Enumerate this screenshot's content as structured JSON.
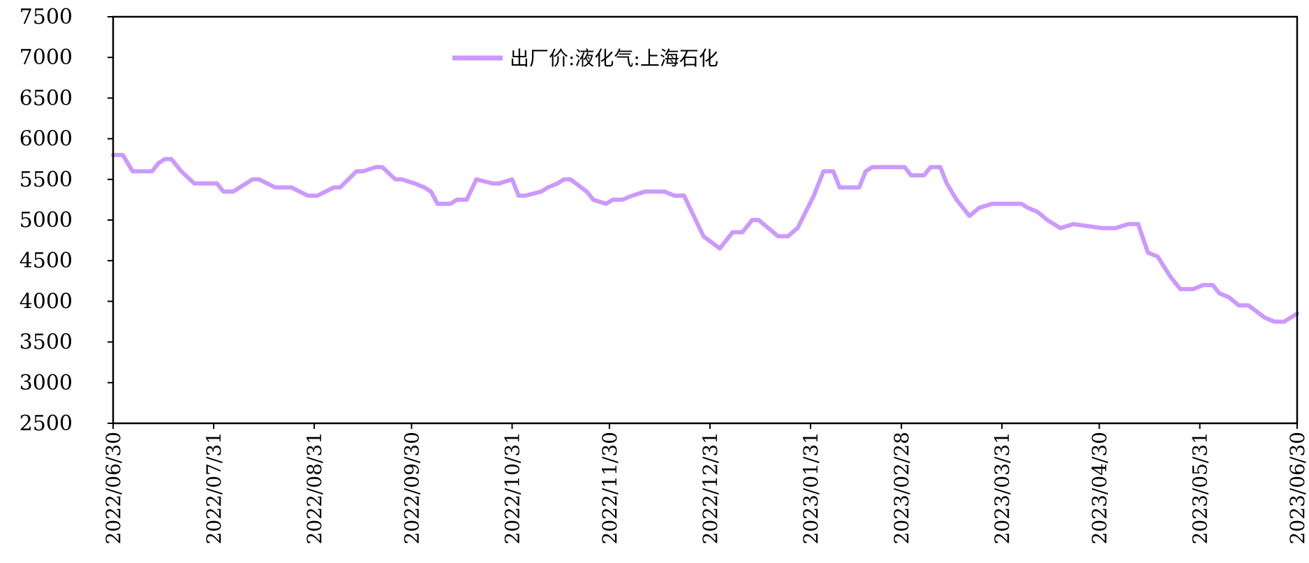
{
  "chart_data": {
    "type": "line",
    "title": "",
    "xlabel": "",
    "ylabel": "",
    "ylim": [
      2500,
      7500
    ],
    "yticks": [
      2500,
      3000,
      3500,
      4000,
      4500,
      5000,
      5500,
      6000,
      6500,
      7000,
      7500
    ],
    "xlim": [
      "2022-06-30",
      "2023-06-30"
    ],
    "xticks": [
      "2022/06/30",
      "2022/07/31",
      "2022/08/31",
      "2022/09/30",
      "2022/10/31",
      "2022/11/30",
      "2022/12/31",
      "2023/01/31",
      "2023/02/28",
      "2023/03/31",
      "2023/04/30",
      "2023/05/31",
      "2023/06/30"
    ],
    "grid": false,
    "legend_position": "top-center",
    "series": [
      {
        "name": "出厂价:液化气:上海石化",
        "color": "#cc99ff",
        "x": [
          "2022-06-30",
          "2022-07-03",
          "2022-07-06",
          "2022-07-10",
          "2022-07-12",
          "2022-07-14",
          "2022-07-16",
          "2022-07-18",
          "2022-07-21",
          "2022-07-25",
          "2022-07-27",
          "2022-08-01",
          "2022-08-03",
          "2022-08-06",
          "2022-08-12",
          "2022-08-14",
          "2022-08-19",
          "2022-08-24",
          "2022-08-29",
          "2022-09-01",
          "2022-09-06",
          "2022-09-08",
          "2022-09-13",
          "2022-09-15",
          "2022-09-19",
          "2022-09-21",
          "2022-09-25",
          "2022-09-27",
          "2022-10-01",
          "2022-10-04",
          "2022-10-06",
          "2022-10-08",
          "2022-10-10",
          "2022-10-12",
          "2022-10-14",
          "2022-10-17",
          "2022-10-20",
          "2022-10-25",
          "2022-10-27",
          "2022-10-31",
          "2022-11-02",
          "2022-11-04",
          "2022-11-09",
          "2022-11-11",
          "2022-11-14",
          "2022-11-16",
          "2022-11-18",
          "2022-11-23",
          "2022-11-25",
          "2022-11-29",
          "2022-12-01",
          "2022-12-04",
          "2022-12-07",
          "2022-12-11",
          "2022-12-17",
          "2022-12-20",
          "2022-12-23",
          "2022-12-26",
          "2022-12-29",
          "2023-01-03",
          "2023-01-07",
          "2023-01-10",
          "2023-01-13",
          "2023-01-15",
          "2023-01-18",
          "2023-01-21",
          "2023-01-24",
          "2023-01-27",
          "2023-02-01",
          "2023-02-04",
          "2023-02-07",
          "2023-02-09",
          "2023-02-15",
          "2023-02-17",
          "2023-02-19",
          "2023-03-01",
          "2023-03-03",
          "2023-03-07",
          "2023-03-09",
          "2023-03-12",
          "2023-03-14",
          "2023-03-17",
          "2023-03-21",
          "2023-03-24",
          "2023-03-28",
          "2023-04-06",
          "2023-04-08",
          "2023-04-11",
          "2023-04-14",
          "2023-04-18",
          "2023-04-22",
          "2023-05-01",
          "2023-05-05",
          "2023-05-09",
          "2023-05-12",
          "2023-05-15",
          "2023-05-18",
          "2023-05-22",
          "2023-05-25",
          "2023-05-29",
          "2023-06-01",
          "2023-06-04",
          "2023-06-06",
          "2023-06-09",
          "2023-06-12",
          "2023-06-15",
          "2023-06-20",
          "2023-06-23",
          "2023-06-26",
          "2023-06-30"
        ],
        "y": [
          5800,
          5800,
          5600,
          5600,
          5600,
          5700,
          5750,
          5750,
          5600,
          5450,
          5450,
          5450,
          5350,
          5350,
          5500,
          5500,
          5400,
          5400,
          5300,
          5300,
          5400,
          5400,
          5600,
          5600,
          5650,
          5650,
          5500,
          5500,
          5450,
          5400,
          5350,
          5200,
          5200,
          5200,
          5250,
          5250,
          5500,
          5450,
          5450,
          5500,
          5300,
          5300,
          5350,
          5400,
          5450,
          5500,
          5500,
          5350,
          5250,
          5200,
          5250,
          5250,
          5300,
          5350,
          5350,
          5300,
          5300,
          5050,
          4800,
          4650,
          4850,
          4850,
          5000,
          5000,
          4900,
          4800,
          4800,
          4900,
          5300,
          5600,
          5600,
          5400,
          5400,
          5600,
          5650,
          5650,
          5550,
          5550,
          5650,
          5650,
          5450,
          5250,
          5050,
          5150,
          5200,
          5200,
          5150,
          5100,
          5000,
          4900,
          4950,
          4900,
          4900,
          4950,
          4950,
          4600,
          4550,
          4300,
          4150,
          4150,
          4200,
          4200,
          4100,
          4050,
          3950,
          3950,
          3800,
          3750,
          3750,
          3850
        ]
      }
    ]
  }
}
